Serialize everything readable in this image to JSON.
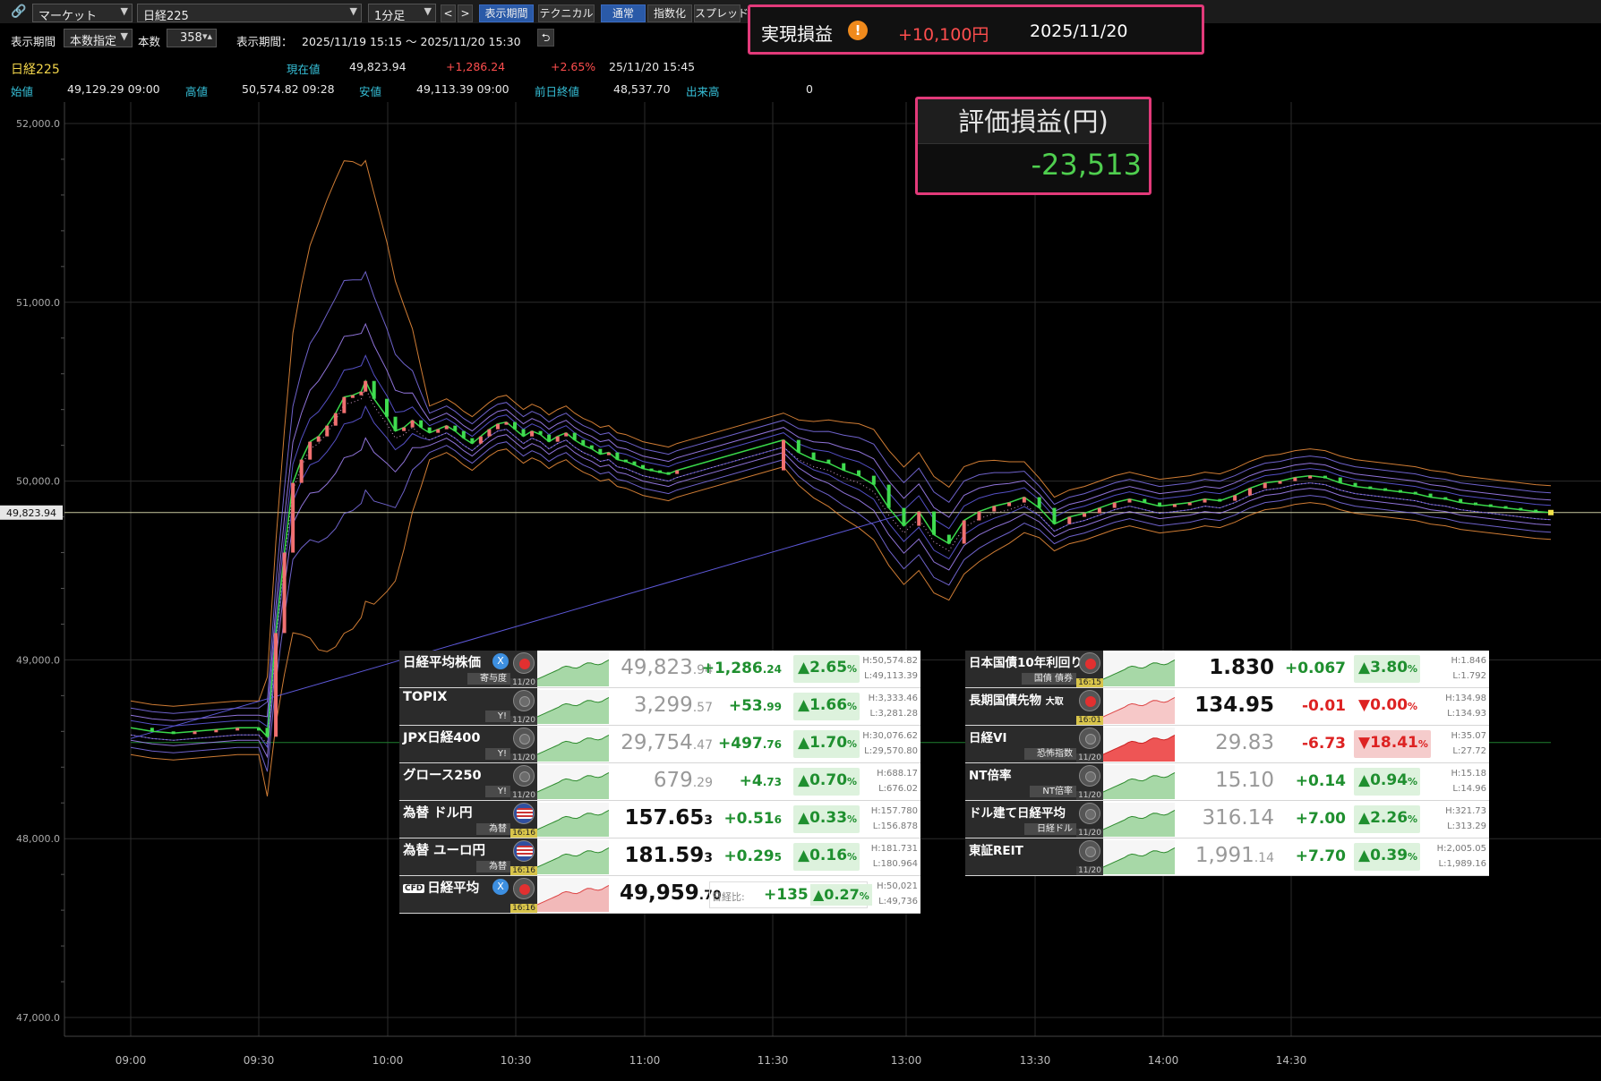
{
  "toolbar": {
    "market_select": "マーケット",
    "symbol_select": "日経225",
    "interval_select": "1分足",
    "prev_label": "<",
    "next_label": ">",
    "view_period_button": "表示期間",
    "technical_button": "テクニカル",
    "mode_normal": "通常",
    "mode_index": "指数化",
    "mode_spread": "スプレッド"
  },
  "toolbar2": {
    "period_label": "表示期間",
    "period_mode": "本数指定",
    "count_label": "本数",
    "count_value": "358",
    "range_label": "表示期間：",
    "range_value": "2025/11/19 15:15 ～ 2025/11/20 15:30"
  },
  "realized_pl": {
    "label": "実現損益",
    "warn_icon": "!",
    "value": "+10,100円",
    "date": "2025/11/20"
  },
  "quote": {
    "name": "日経225",
    "current_label": "現在値",
    "current": "49,823.94",
    "change": "+1,286.24",
    "change_pct": "+2.65%",
    "datetime": "25/11/20 15:45",
    "open_label": "始値",
    "open": "49,129.29 09:00",
    "high_label": "高値",
    "high": "50,574.82 09:28",
    "low_label": "安値",
    "low": "49,113.39 09:00",
    "prev_label": "前日終値",
    "prev": "48,537.70",
    "volume_label": "出来高",
    "volume": "0"
  },
  "eval_pl": {
    "label": "評価損益(円)",
    "value": "-23,513"
  },
  "chart_data": {
    "type": "line",
    "current_label": "49,823.94",
    "y_ticks": [
      "52,000.0",
      "51,000.0",
      "50,000.0",
      "49,000.0",
      "48,000.0",
      "47,000.0"
    ],
    "y_tick_values": [
      52000,
      51000,
      50000,
      49000,
      48000,
      47000
    ],
    "x_ticks": [
      "09:00",
      "09:30",
      "10:00",
      "10:30",
      "11:00",
      "11:30",
      "13:00",
      "13:30",
      "14:00",
      "14:30"
    ],
    "ylim": [
      47000,
      52000
    ],
    "current": 49823.94,
    "prev_close": 48537.7,
    "grid": true,
    "price_path": [
      [
        0,
        48620
      ],
      [
        5,
        48600
      ],
      [
        10,
        48590
      ],
      [
        15,
        48600
      ],
      [
        20,
        48610
      ],
      [
        25,
        48620
      ],
      [
        30,
        48620
      ],
      [
        32,
        48570
      ],
      [
        34,
        49150
      ],
      [
        36,
        49600
      ],
      [
        38,
        49990
      ],
      [
        40,
        50120
      ],
      [
        42,
        50220
      ],
      [
        44,
        50250
      ],
      [
        46,
        50310
      ],
      [
        48,
        50380
      ],
      [
        50,
        50470
      ],
      [
        52,
        50480
      ],
      [
        54,
        50500
      ],
      [
        55,
        50560
      ],
      [
        57,
        50460
      ],
      [
        60,
        50360
      ],
      [
        62,
        50280
      ],
      [
        64,
        50300
      ],
      [
        66,
        50340
      ],
      [
        68,
        50300
      ],
      [
        70,
        50270
      ],
      [
        72,
        50290
      ],
      [
        74,
        50310
      ],
      [
        76,
        50280
      ],
      [
        78,
        50240
      ],
      [
        80,
        50210
      ],
      [
        82,
        50250
      ],
      [
        84,
        50290
      ],
      [
        86,
        50320
      ],
      [
        88,
        50330
      ],
      [
        90,
        50290
      ],
      [
        92,
        50250
      ],
      [
        94,
        50280
      ],
      [
        96,
        50260
      ],
      [
        98,
        50220
      ],
      [
        100,
        50250
      ],
      [
        102,
        50270
      ],
      [
        104,
        50230
      ],
      [
        106,
        50200
      ],
      [
        108,
        50180
      ],
      [
        110,
        50150
      ],
      [
        112,
        50160
      ],
      [
        114,
        50120
      ],
      [
        116,
        50110
      ],
      [
        118,
        50090
      ],
      [
        120,
        50070
      ],
      [
        122,
        50060
      ],
      [
        124,
        50050
      ],
      [
        126,
        50040
      ],
      [
        128,
        50060
      ],
      [
        150,
        50230
      ],
      [
        152,
        50160
      ],
      [
        154,
        50120
      ],
      [
        156,
        50100
      ],
      [
        158,
        50060
      ],
      [
        160,
        50030
      ],
      [
        162,
        49980
      ],
      [
        164,
        49850
      ],
      [
        166,
        49750
      ],
      [
        168,
        49830
      ],
      [
        170,
        49700
      ],
      [
        172,
        49650
      ],
      [
        174,
        49780
      ],
      [
        176,
        49830
      ],
      [
        178,
        49860
      ],
      [
        180,
        49880
      ],
      [
        182,
        49910
      ],
      [
        184,
        49850
      ],
      [
        186,
        49760
      ],
      [
        188,
        49800
      ],
      [
        190,
        49820
      ],
      [
        192,
        49850
      ],
      [
        194,
        49880
      ],
      [
        196,
        49900
      ],
      [
        198,
        49880
      ],
      [
        200,
        49860
      ],
      [
        202,
        49870
      ],
      [
        204,
        49880
      ],
      [
        206,
        49900
      ],
      [
        208,
        49890
      ],
      [
        210,
        49920
      ],
      [
        212,
        49960
      ],
      [
        214,
        49990
      ],
      [
        216,
        50000
      ],
      [
        218,
        50020
      ],
      [
        220,
        50030
      ],
      [
        222,
        50020
      ],
      [
        224,
        49990
      ],
      [
        226,
        49970
      ],
      [
        228,
        49960
      ],
      [
        230,
        49950
      ],
      [
        232,
        49940
      ],
      [
        234,
        49930
      ],
      [
        236,
        49910
      ],
      [
        238,
        49900
      ],
      [
        240,
        49880
      ],
      [
        242,
        49870
      ],
      [
        244,
        49860
      ],
      [
        246,
        49850
      ],
      [
        248,
        49840
      ],
      [
        250,
        49830
      ],
      [
        252,
        49823.94
      ]
    ]
  },
  "indices_left": [
    {
      "name": "日経平均株価",
      "sub": "寄与度",
      "time": "11/20",
      "price_int": "49,823",
      "price_dec": ".94",
      "change_int": "+1,286",
      "change_dec": ".24",
      "pct": "▲2.65",
      "pct_unit": "%",
      "high": "H:50,574.82",
      "low": "L:49,113.39",
      "icon": "jp",
      "x": true
    },
    {
      "name": "TOPIX",
      "sub": "Y!",
      "time": "11/20",
      "price_int": "3,299",
      "price_dec": ".57",
      "change_int": "+53",
      "change_dec": ".99",
      "pct": "▲1.66",
      "pct_unit": "%",
      "high": "H:3,333.46",
      "low": "L:3,281.28",
      "icon": "gray",
      "x": false
    },
    {
      "name": "JPX日経400",
      "sub": "Y!",
      "time": "11/20",
      "price_int": "29,754",
      "price_dec": ".47",
      "change_int": "+497",
      "change_dec": ".76",
      "pct": "▲1.70",
      "pct_unit": "%",
      "high": "H:30,076.62",
      "low": "L:29,570.80",
      "icon": "gray",
      "x": false
    },
    {
      "name": "グロース250",
      "sub": "Y!",
      "time": "11/20",
      "price_int": "679",
      "price_dec": ".29",
      "change_int": "+4",
      "change_dec": ".73",
      "pct": "▲0.70",
      "pct_unit": "%",
      "high": "H:688.17",
      "low": "L:676.02",
      "icon": "gray",
      "x": false
    },
    {
      "name": "為替 ドル円",
      "sub": "為替",
      "time": "16:16",
      "price_int": "157.65",
      "price_dec": "3",
      "change_int": "+0.51",
      "change_dec": "6",
      "pct": "▲0.33",
      "pct_unit": "%",
      "high": "H:157.780",
      "low": "L:156.878",
      "icon": "us",
      "x": false
    },
    {
      "name": "為替 ユーロ円",
      "sub": "為替",
      "time": "16:16",
      "price_int": "181.59",
      "price_dec": "3",
      "change_int": "+0.29",
      "change_dec": "5",
      "pct": "▲0.16",
      "pct_unit": "%",
      "high": "H:181.731",
      "low": "L:180.964",
      "icon": "us",
      "x": false
    }
  ],
  "cfd_row": {
    "tag": "CFD",
    "name": "日経平均",
    "time": "16:16",
    "price_int": "49,959",
    "price_dec": ".70",
    "diff_label": "日経比:",
    "diff_value": "+135",
    "diff_pct": "▲0.27",
    "pct_unit": "%",
    "high": "H:50,021",
    "low": "L:49,736"
  },
  "indices_right": [
    {
      "name": "日本国債10年利回り",
      "sub": "国債 債券",
      "time": "16:15",
      "price": "1.830",
      "change": "+0.067",
      "pct": "▲3.80",
      "pct_unit": "%",
      "high": "H:1.846",
      "low": "L:1.792",
      "color": "g",
      "icon": "jp"
    },
    {
      "name": "長期国債先物",
      "name2": "大取",
      "sub": "",
      "time": "16:01",
      "price": "134.95",
      "change": "-0.01",
      "pct": "▼0.00",
      "pct_unit": "%",
      "high": "H:134.98",
      "low": "L:134.93",
      "color": "r",
      "icon": "jp"
    },
    {
      "name": "日経VI",
      "sub": "恐怖指数",
      "time": "11/20",
      "price": "29.83",
      "change": "-6.73",
      "pct": "▼18.41",
      "pct_unit": "%",
      "high": "H:35.07",
      "low": "L:27.72",
      "color": "rb",
      "icon": "gray"
    },
    {
      "name": "NT倍率",
      "sub": "NT倍率",
      "time": "11/20",
      "price": "15.10",
      "change": "+0.14",
      "pct": "▲0.94",
      "pct_unit": "%",
      "high": "H:15.18",
      "low": "L:14.96",
      "color": "g",
      "icon": "gray"
    },
    {
      "name": "ドル建て日経平均",
      "sub": "日経ドル",
      "time": "11/20",
      "price": "316.14",
      "change": "+7.00",
      "pct": "▲2.26",
      "pct_unit": "%",
      "high": "H:321.73",
      "low": "L:313.29",
      "color": "g",
      "icon": "gray"
    },
    {
      "name": "東証REIT",
      "sub": "",
      "time": "11/20",
      "price": "1,991",
      "price_dec": ".14",
      "change": "+7.70",
      "pct": "▲0.39",
      "pct_unit": "%",
      "high": "H:2,005.05",
      "low": "L:1,989.16",
      "color": "g",
      "icon": "gray"
    }
  ]
}
